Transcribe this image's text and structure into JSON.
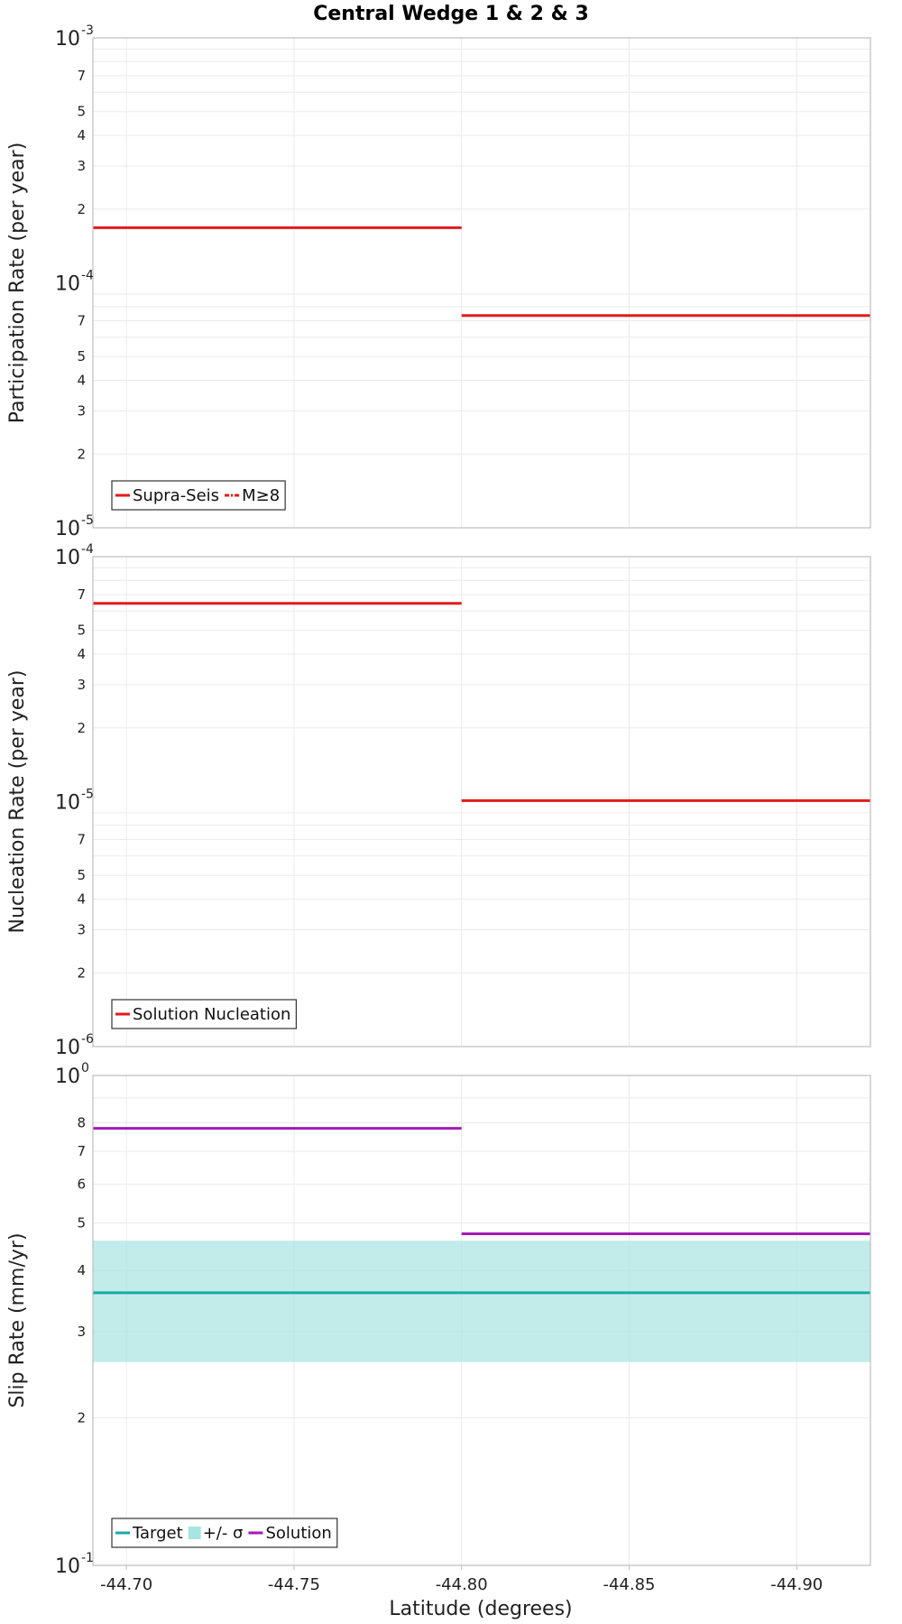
{
  "chart_data": {
    "title": "Central Wedge 1 & 2 & 3",
    "xlabel": "Latitude (degrees)",
    "xlim": [
      -44.69,
      -44.922
    ],
    "xticks": [
      -44.7,
      -44.75,
      -44.8,
      -44.85,
      -44.9
    ],
    "xtick_labels": [
      "-44.70",
      "-44.75",
      "-44.80",
      "-44.85",
      "-44.90"
    ],
    "panels": [
      {
        "type": "line",
        "scale": "log",
        "ylabel": "Participation Rate (per year)",
        "ylim_exp": [
          -5,
          -3
        ],
        "major_ticks": [
          {
            "base": "10",
            "exp": "-3",
            "value": 0.001
          },
          {
            "base": "10",
            "exp": "-4",
            "value": 0.0001
          },
          {
            "base": "10",
            "exp": "-5",
            "value": 1e-05
          }
        ],
        "minor_ticks": [
          {
            "label": "7",
            "value": 0.0007
          },
          {
            "label": "5",
            "value": 0.0005
          },
          {
            "label": "4",
            "value": 0.0004
          },
          {
            "label": "3",
            "value": 0.0003
          },
          {
            "label": "2",
            "value": 0.0002
          },
          {
            "label": "7",
            "value": 7e-05
          },
          {
            "label": "5",
            "value": 5e-05
          },
          {
            "label": "4",
            "value": 4e-05
          },
          {
            "label": "3",
            "value": 3e-05
          },
          {
            "label": "2",
            "value": 2e-05
          }
        ],
        "series": [
          {
            "name": "Supra-Seis",
            "color": "#e31a1c",
            "style": "solid",
            "segments": [
              {
                "x0": -44.69,
                "x1": -44.8,
                "y": 0.000168
              },
              {
                "x0": -44.8,
                "x1": -44.922,
                "y": 7.35e-05
              }
            ]
          }
        ],
        "legend": [
          {
            "label": "Supra-Seis",
            "color": "#e31a1c",
            "style": "solid"
          },
          {
            "label": "M≥8",
            "color": "#e31a1c",
            "style": "dashdot"
          }
        ]
      },
      {
        "type": "line",
        "scale": "log",
        "ylabel": "Nucleation Rate (per year)",
        "ylim_exp": [
          -6,
          -4
        ],
        "major_ticks": [
          {
            "base": "10",
            "exp": "-4",
            "value": 0.0001
          },
          {
            "base": "10",
            "exp": "-5",
            "value": 1e-05
          },
          {
            "base": "10",
            "exp": "-6",
            "value": 1e-06
          }
        ],
        "minor_ticks": [
          {
            "label": "7",
            "value": 7e-05
          },
          {
            "label": "5",
            "value": 5e-05
          },
          {
            "label": "4",
            "value": 4e-05
          },
          {
            "label": "3",
            "value": 3e-05
          },
          {
            "label": "2",
            "value": 2e-05
          },
          {
            "label": "7",
            "value": 7e-06
          },
          {
            "label": "5",
            "value": 5e-06
          },
          {
            "label": "4",
            "value": 4e-06
          },
          {
            "label": "3",
            "value": 3e-06
          },
          {
            "label": "2",
            "value": 2e-06
          }
        ],
        "series": [
          {
            "name": "Solution Nucleation",
            "color": "#e31a1c",
            "style": "solid",
            "segments": [
              {
                "x0": -44.69,
                "x1": -44.8,
                "y": 6.45e-05
              },
              {
                "x0": -44.8,
                "x1": -44.922,
                "y": 1.01e-05
              }
            ]
          }
        ],
        "legend": [
          {
            "label": "Solution Nucleation",
            "color": "#e31a1c",
            "style": "solid"
          }
        ]
      },
      {
        "type": "line",
        "scale": "log",
        "ylabel": "Slip Rate (mm/yr)",
        "ylim_exp": [
          -1,
          0
        ],
        "major_ticks": [
          {
            "base": "10",
            "exp": "0",
            "value": 1
          },
          {
            "base": "10",
            "exp": "-1",
            "value": 0.1
          }
        ],
        "minor_ticks": [
          {
            "label": "8",
            "value": 0.8
          },
          {
            "label": "7",
            "value": 0.7
          },
          {
            "label": "6",
            "value": 0.6
          },
          {
            "label": "5",
            "value": 0.5
          },
          {
            "label": "4",
            "value": 0.4
          },
          {
            "label": "3",
            "value": 0.3
          },
          {
            "label": "2",
            "value": 0.2
          }
        ],
        "band": {
          "name": "+/- σ",
          "color": "#a8e4e1",
          "y0": 0.26,
          "y1": 0.46
        },
        "series": [
          {
            "name": "Target",
            "color": "#17aaa8",
            "style": "solid",
            "segments": [
              {
                "x0": -44.69,
                "x1": -44.922,
                "y": 0.36
              }
            ]
          },
          {
            "name": "Solution",
            "color": "#a31ab5",
            "style": "solid",
            "segments": [
              {
                "x0": -44.69,
                "x1": -44.8,
                "y": 0.78
              },
              {
                "x0": -44.8,
                "x1": -44.922,
                "y": 0.475
              }
            ]
          }
        ],
        "legend": [
          {
            "label": "Target",
            "color": "#17aaa8",
            "style": "solid"
          },
          {
            "label": "+/- σ",
            "color": "#a8e4e1",
            "style": "band"
          },
          {
            "label": "Solution",
            "color": "#a31ab5",
            "style": "solid"
          }
        ]
      }
    ]
  }
}
